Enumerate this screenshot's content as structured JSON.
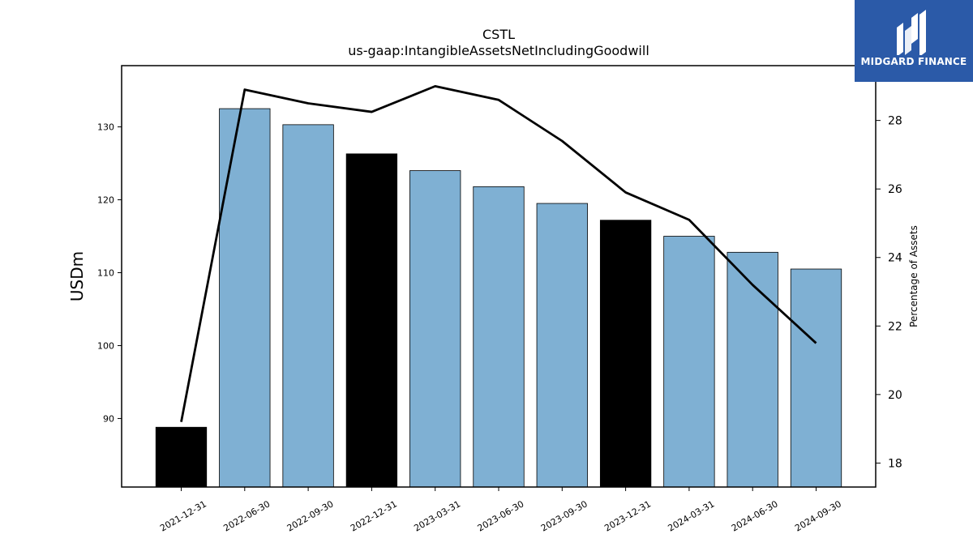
{
  "brand": {
    "name": "MIDGARD FINANCE",
    "color": "#2b5aa8"
  },
  "chart_data": {
    "type": "bar",
    "title": "CSTL",
    "subtitle": "us-gaap:IntangibleAssetsNetIncludingGoodwill",
    "ylabel": "USDm",
    "y2label": "Percentage of Assets",
    "categories": [
      "2021-12-31",
      "2022-06-30",
      "2022-09-30",
      "2022-12-31",
      "2023-03-31",
      "2023-06-30",
      "2023-09-30",
      "2023-12-31",
      "2024-03-31",
      "2024-06-30",
      "2024-09-30"
    ],
    "series": [
      {
        "kind": "bar",
        "axis": "left",
        "values": [
          88.8,
          132.5,
          130.3,
          126.3,
          124.0,
          121.8,
          119.5,
          117.2,
          115.0,
          112.8,
          110.5
        ],
        "colors": [
          "#000000",
          "#7fb0d3",
          "#7fb0d3",
          "#000000",
          "#7fb0d3",
          "#7fb0d3",
          "#7fb0d3",
          "#000000",
          "#7fb0d3",
          "#7fb0d3",
          "#7fb0d3"
        ]
      },
      {
        "kind": "line",
        "axis": "right",
        "color": "#000000",
        "values": [
          19.2,
          28.9,
          28.5,
          28.25,
          29.0,
          28.6,
          27.4,
          25.9,
          25.1,
          23.2,
          21.5
        ]
      }
    ],
    "ylim": [
      80.6,
      138.4
    ],
    "yticks": [
      90,
      100,
      110,
      120,
      130
    ],
    "y2lim": [
      17.3,
      29.6
    ],
    "y2ticks": [
      18,
      20,
      22,
      24,
      26,
      28
    ],
    "grid": false
  }
}
